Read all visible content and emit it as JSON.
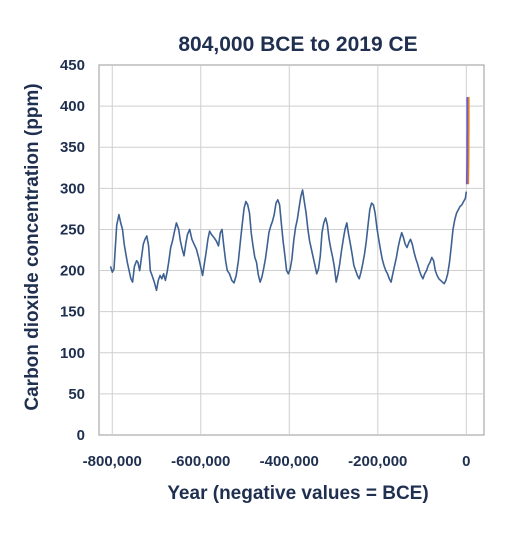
{
  "chart_data": {
    "type": "line",
    "title": "804,000 BCE to 2019 CE",
    "xlabel": "Year (negative values = BCE)",
    "ylabel": "Carbon dioxide concentration (ppm)",
    "xlim": [
      -830000,
      40000
    ],
    "ylim": [
      0,
      450
    ],
    "xticks": [
      -800000,
      -600000,
      -400000,
      -200000,
      0
    ],
    "xtick_labels": [
      "-800,000",
      "-600,000",
      "-400,000",
      "-200,000",
      "0"
    ],
    "yticks": [
      0,
      50,
      100,
      150,
      200,
      250,
      300,
      350,
      400,
      450
    ],
    "ytick_labels": [
      "0",
      "50",
      "100",
      "150",
      "200",
      "250",
      "300",
      "350",
      "400",
      "450"
    ],
    "grid": true,
    "colors": {
      "ice_core": "#3e6193",
      "modern_orange": "#e07b27",
      "modern_purple": "#6a5acd",
      "text": "#1f2f4f",
      "grid": "#cfcfcf"
    },
    "series": [
      {
        "x": [
          -804000,
          -800000,
          -796000,
          -790000,
          -785000,
          -781000,
          -777000,
          -773000,
          -770000,
          -766000,
          -762000,
          -758000,
          -754000,
          -750000,
          -745000,
          -742000,
          -738000,
          -734000,
          -730000,
          -726000,
          -722000,
          -718000,
          -714000,
          -710000,
          -705000,
          -700000,
          -696000,
          -692000,
          -688000,
          -684000,
          -680000,
          -676000,
          -672000,
          -668000,
          -664000,
          -660000,
          -655000,
          -650000,
          -646000,
          -642000,
          -638000,
          -634000,
          -630000,
          -625000,
          -620000,
          -615000,
          -610000,
          -605000,
          -600000,
          -596000,
          -592000,
          -588000,
          -584000,
          -580000,
          -576000,
          -570000,
          -565000,
          -560000,
          -556000,
          -552000,
          -548000,
          -544000,
          -540000,
          -535000,
          -530000,
          -525000,
          -520000,
          -515000,
          -510000,
          -506000,
          -502000,
          -498000,
          -494000,
          -490000,
          -486000,
          -482000,
          -478000,
          -474000,
          -470000,
          -466000,
          -462000,
          -458000,
          -454000,
          -450000,
          -446000,
          -442000,
          -438000,
          -434000,
          -430000,
          -426000,
          -422000,
          -418000,
          -414000,
          -410000,
          -406000,
          -402000,
          -398000,
          -394000,
          -390000,
          -386000,
          -382000,
          -378000,
          -374000,
          -370000,
          -366000,
          -362000,
          -358000,
          -354000,
          -350000,
          -346000,
          -342000,
          -338000,
          -334000,
          -330000,
          -326000,
          -322000,
          -318000,
          -314000,
          -310000,
          -306000,
          -302000,
          -298000,
          -294000,
          -290000,
          -286000,
          -282000,
          -278000,
          -274000,
          -270000,
          -266000,
          -262000,
          -258000,
          -254000,
          -250000,
          -246000,
          -242000,
          -238000,
          -234000,
          -230000,
          -226000,
          -222000,
          -218000,
          -214000,
          -210000,
          -206000,
          -202000,
          -198000,
          -194000,
          -190000,
          -186000,
          -182000,
          -178000,
          -174000,
          -170000,
          -166000,
          -162000,
          -158000,
          -154000,
          -150000,
          -146000,
          -142000,
          -138000,
          -134000,
          -130000,
          -126000,
          -122000,
          -118000,
          -114000,
          -110000,
          -106000,
          -102000,
          -98000,
          -94000,
          -90000,
          -86000,
          -82000,
          -78000,
          -74000,
          -70000,
          -66000,
          -62000,
          -58000,
          -54000,
          -50000,
          -46000,
          -42000,
          -38000,
          -34000,
          -30000,
          -26000,
          -22000,
          -18000,
          -14000,
          -10000,
          -6000,
          -2000,
          0
        ],
        "values": [
          205,
          198,
          202,
          255,
          268,
          258,
          250,
          232,
          222,
          210,
          200,
          190,
          186,
          205,
          212,
          210,
          200,
          216,
          232,
          238,
          242,
          230,
          200,
          194,
          186,
          176,
          188,
          194,
          190,
          196,
          188,
          198,
          212,
          228,
          236,
          246,
          258,
          250,
          236,
          226,
          218,
          232,
          244,
          250,
          238,
          232,
          226,
          216,
          204,
          194,
          208,
          222,
          238,
          248,
          244,
          240,
          236,
          230,
          246,
          250,
          230,
          212,
          200,
          196,
          188,
          185,
          194,
          212,
          238,
          258,
          276,
          284,
          280,
          270,
          246,
          230,
          216,
          210,
          195,
          186,
          192,
          202,
          214,
          230,
          246,
          254,
          260,
          268,
          282,
          286,
          280,
          258,
          236,
          218,
          200,
          196,
          202,
          214,
          236,
          252,
          262,
          276,
          290,
          298,
          284,
          270,
          250,
          236,
          226,
          216,
          206,
          196,
          202,
          218,
          246,
          258,
          264,
          256,
          238,
          226,
          216,
          204,
          186,
          196,
          208,
          224,
          238,
          250,
          258,
          244,
          232,
          220,
          206,
          200,
          194,
          190,
          198,
          208,
          220,
          236,
          256,
          274,
          282,
          280,
          270,
          252,
          238,
          226,
          214,
          206,
          200,
          196,
          190,
          186,
          196,
          206,
          216,
          228,
          238,
          246,
          240,
          232,
          228,
          234,
          238,
          232,
          222,
          214,
          208,
          200,
          194,
          190,
          196,
          200,
          206,
          210,
          216,
          212,
          200,
          194,
          190,
          188,
          186,
          184,
          188,
          196,
          210,
          230,
          250,
          262,
          270,
          274,
          278,
          280,
          284,
          288,
          296
        ]
      },
      {
        "x": [
          800,
          1200,
          1600,
          1800,
          1900,
          1950,
          1980,
          2000,
          2019
        ],
        "values": [
          305,
          315,
          330,
          345,
          360,
          372,
          385,
          398,
          411
        ]
      }
    ]
  }
}
